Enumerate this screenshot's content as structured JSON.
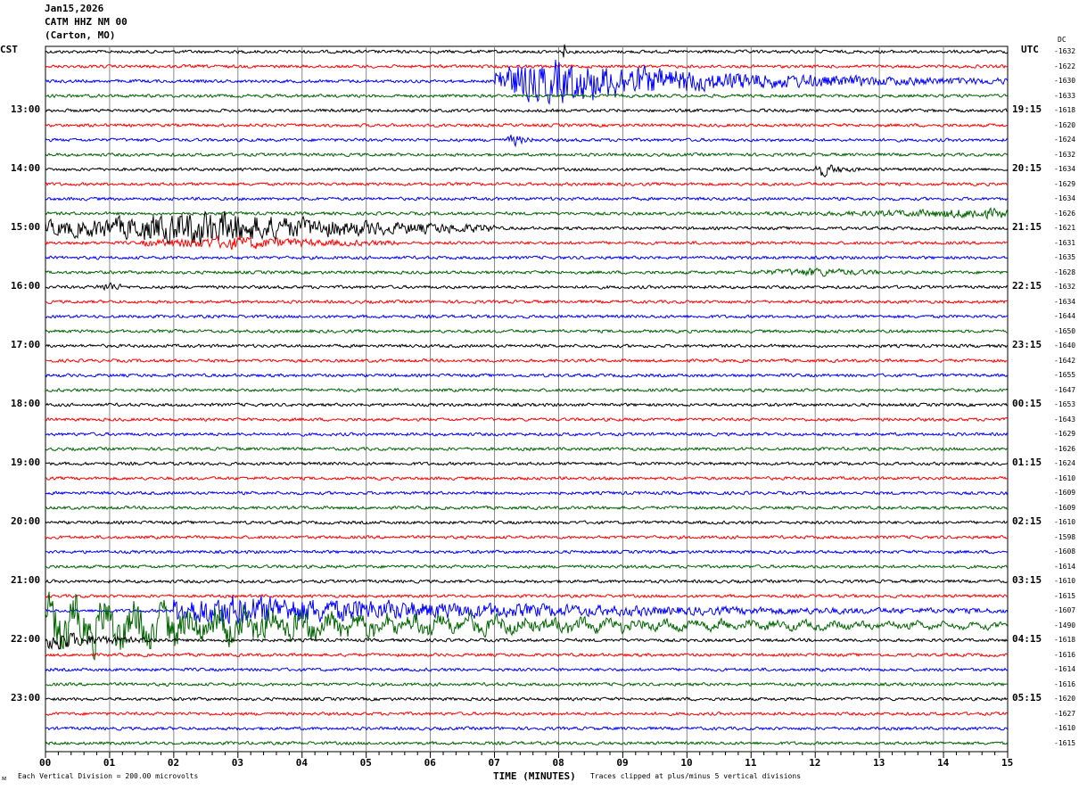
{
  "header": {
    "date": "Jan15,2026",
    "station": "CATM HHZ NM 00",
    "location": "(Carton, MO)"
  },
  "left_timezone": "CST",
  "right_timezone": "UTC",
  "dc_label": "DC",
  "footer": {
    "scale_note": "Each Vertical Division =  200.00 microvolts",
    "clip_note": "Traces clipped at plus/minus 5 vertical divisions",
    "corner_mark": "ᴍ"
  },
  "colors": [
    "#000000",
    "#ff0000",
    "#0000ff",
    "#006400"
  ],
  "chart_data": {
    "type": "line",
    "title": "CATM HHZ NM 00 helicorder",
    "xlabel": "TIME (MINUTES)",
    "xlim": [
      0,
      15
    ],
    "x_ticks": [
      "00",
      "01",
      "02",
      "03",
      "04",
      "05",
      "06",
      "07",
      "08",
      "09",
      "10",
      "11",
      "12",
      "13",
      "14",
      "15"
    ],
    "row_count": 48,
    "left_labels": [
      {
        "row": 4,
        "text": "13:00"
      },
      {
        "row": 8,
        "text": "14:00"
      },
      {
        "row": 12,
        "text": "15:00"
      },
      {
        "row": 16,
        "text": "16:00"
      },
      {
        "row": 20,
        "text": "17:00"
      },
      {
        "row": 24,
        "text": "18:00"
      },
      {
        "row": 28,
        "text": "19:00"
      },
      {
        "row": 32,
        "text": "20:00"
      },
      {
        "row": 36,
        "text": "21:00"
      },
      {
        "row": 40,
        "text": "22:00"
      },
      {
        "row": 44,
        "text": "23:00"
      }
    ],
    "right_labels": [
      {
        "row": 4,
        "text": "19:15"
      },
      {
        "row": 8,
        "text": "20:15"
      },
      {
        "row": 12,
        "text": "21:15"
      },
      {
        "row": 16,
        "text": "22:15"
      },
      {
        "row": 20,
        "text": "23:15"
      },
      {
        "row": 24,
        "text": "00:15"
      },
      {
        "row": 28,
        "text": "01:15"
      },
      {
        "row": 32,
        "text": "02:15"
      },
      {
        "row": 36,
        "text": "03:15"
      },
      {
        "row": 40,
        "text": "04:15"
      },
      {
        "row": 44,
        "text": "05:15"
      }
    ],
    "dc_offsets": [
      -1632,
      -1622,
      -1630,
      -1633,
      -1618,
      -1620,
      -1624,
      -1632,
      -1634,
      -1629,
      -1634,
      -1626,
      -1621,
      -1631,
      -1635,
      -1628,
      -1632,
      -1634,
      -1644,
      -1650,
      -1640,
      -1642,
      -1655,
      -1647,
      -1653,
      -1643,
      -1629,
      -1626,
      -1624,
      -1610,
      -1609,
      -1609,
      -1610,
      -1598,
      -1608,
      -1614,
      -1610,
      -1615,
      -1607,
      -1490,
      -1618,
      -1616,
      -1614,
      -1616,
      -1620,
      -1627,
      -1610,
      -1615
    ],
    "events": [
      {
        "row": 2,
        "start": 7.0,
        "end": 15.0,
        "peak": 8.0,
        "amp": 5
      },
      {
        "row": 0,
        "start": 8.05,
        "end": 8.1,
        "peak": 8.07,
        "amp": 4
      },
      {
        "row": 6,
        "start": 7.2,
        "end": 7.7,
        "peak": 7.3,
        "amp": 1.2
      },
      {
        "row": 8,
        "start": 12.0,
        "end": 12.7,
        "peak": 12.1,
        "amp": 1.5
      },
      {
        "row": 11,
        "start": 11.0,
        "end": 15.0,
        "peak": 14.5,
        "amp": 1.0
      },
      {
        "row": 12,
        "start": 0.0,
        "end": 7.0,
        "peak": 2.5,
        "amp": 4
      },
      {
        "row": 13,
        "start": 1.5,
        "end": 5.5,
        "peak": 3,
        "amp": 1.3
      },
      {
        "row": 15,
        "start": 11.0,
        "end": 13.0,
        "peak": 12,
        "amp": 0.8
      },
      {
        "row": 16,
        "start": 0.8,
        "end": 1.2,
        "peak": 1,
        "amp": 1
      },
      {
        "row": 38,
        "start": 2.0,
        "end": 15.0,
        "peak": 3.0,
        "amp": 3.5
      },
      {
        "row": 39,
        "start": 0.0,
        "end": 15.0,
        "peak": 0.5,
        "amp": 5
      },
      {
        "row": 40,
        "start": 0.0,
        "end": 2.0,
        "peak": 0.2,
        "amp": 2
      }
    ]
  }
}
